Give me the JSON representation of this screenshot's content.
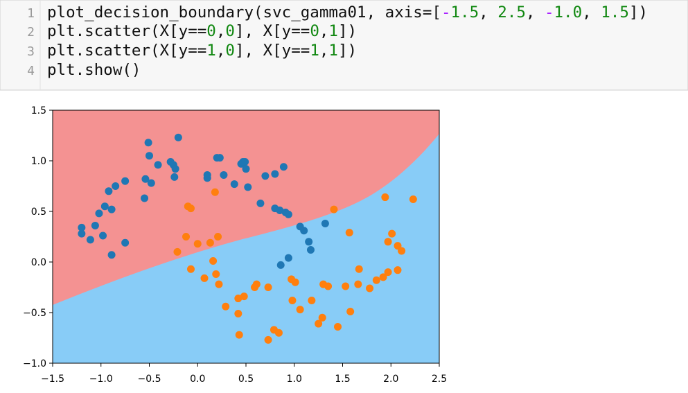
{
  "code": {
    "line_numbers": [
      1,
      2,
      3,
      4
    ],
    "lines": [
      [
        "plot_decision_boundary(svc_gamma01, axis=[",
        "-",
        "1.5",
        ", ",
        "2.5",
        ", ",
        "-",
        "1.0",
        ", ",
        "1.5",
        "])"
      ],
      [
        "plt.scatter(X[y==",
        "0",
        ",",
        "0",
        "], X[y==",
        "0",
        ",",
        "1",
        "])"
      ],
      [
        "plt.scatter(X[y==",
        "1",
        ",",
        "0",
        "], X[y==",
        "1",
        ",",
        "1",
        "])"
      ],
      [
        "plt.show()"
      ]
    ]
  },
  "chart_data": {
    "type": "scatter",
    "xlim": [
      -1.5,
      2.5
    ],
    "ylim": [
      -1.0,
      1.5
    ],
    "xticks": [
      {
        "value": -1.5,
        "label": "−1.5"
      },
      {
        "value": -1.0,
        "label": "−1.0"
      },
      {
        "value": -0.5,
        "label": "−0.5"
      },
      {
        "value": 0,
        "label": "0.0"
      },
      0.5,
      {
        "value": 1.0,
        "label": "1.0"
      },
      1.5,
      {
        "value": 2.0,
        "label": "2.0"
      },
      2.5
    ],
    "yticks": [
      {
        "value": -1.0,
        "label": "−1.0"
      },
      {
        "value": -0.5,
        "label": "−0.5"
      },
      {
        "value": 0,
        "label": "0.0"
      },
      0.5,
      {
        "value": 1.0,
        "label": "1.0"
      },
      1.5
    ],
    "series": [
      {
        "color": "#1f77b4",
        "x": [
          -1.2,
          -1.2,
          -1.11,
          -1.06,
          -1.02,
          -0.98,
          -0.96,
          -0.89,
          -0.92,
          -0.85,
          -0.75,
          -0.89,
          -0.75,
          -0.55,
          -0.54,
          -0.48,
          -0.5,
          -0.51,
          -0.41,
          -0.28,
          -0.25,
          -0.23,
          -0.24,
          -0.2,
          0.1,
          0.1,
          0.2,
          0.23,
          0.27,
          0.38,
          0.45,
          0.47,
          0.49,
          0.5,
          0.52,
          0.65,
          0.7,
          0.8,
          0.89,
          0.8,
          0.85,
          0.91,
          0.94,
          1.06,
          1.1,
          1.15,
          1.17,
          0.86,
          0.94,
          1.32
        ],
        "values": [
          0.34,
          0.28,
          0.22,
          0.36,
          0.48,
          0.26,
          0.55,
          0.52,
          0.7,
          0.75,
          0.8,
          0.07,
          0.19,
          0.63,
          0.82,
          0.78,
          1.05,
          1.18,
          0.96,
          0.99,
          0.96,
          0.92,
          0.84,
          1.23,
          0.83,
          0.86,
          1.03,
          1.03,
          0.86,
          0.77,
          0.97,
          0.99,
          0.99,
          0.92,
          0.74,
          0.58,
          0.85,
          0.87,
          0.94,
          0.53,
          0.51,
          0.49,
          0.47,
          0.35,
          0.31,
          0.2,
          0.12,
          -0.03,
          0.04,
          0.38
        ]
      },
      {
        "color": "#ff7f0e",
        "x": [
          -0.1,
          -0.07,
          -0.12,
          -0.21,
          0.0,
          0.13,
          0.21,
          0.18,
          -0.07,
          0.07,
          0.16,
          0.19,
          0.22,
          0.29,
          0.42,
          0.43,
          0.42,
          0.48,
          0.59,
          0.61,
          0.73,
          0.79,
          0.84,
          0.73,
          0.97,
          1.01,
          0.98,
          1.06,
          1.18,
          1.25,
          1.29,
          1.3,
          1.35,
          1.45,
          1.53,
          1.58,
          1.57,
          1.41,
          1.66,
          1.67,
          1.78,
          1.85,
          1.92,
          1.97,
          2.07,
          1.97,
          2.01,
          2.07,
          2.11,
          1.94,
          2.23
        ],
        "values": [
          0.55,
          0.53,
          0.25,
          0.1,
          0.18,
          0.19,
          0.25,
          0.69,
          -0.07,
          -0.16,
          0.01,
          -0.12,
          -0.22,
          -0.44,
          -0.51,
          -0.72,
          -0.36,
          -0.34,
          -0.25,
          -0.22,
          -0.77,
          -0.67,
          -0.7,
          -0.25,
          -0.17,
          -0.2,
          -0.38,
          -0.47,
          -0.38,
          -0.61,
          -0.55,
          -0.22,
          -0.24,
          -0.64,
          -0.24,
          -0.49,
          0.29,
          0.52,
          -0.22,
          -0.07,
          -0.26,
          -0.18,
          -0.15,
          -0.1,
          -0.08,
          0.2,
          0.28,
          0.16,
          0.11,
          0.64,
          0.62
        ]
      }
    ]
  }
}
